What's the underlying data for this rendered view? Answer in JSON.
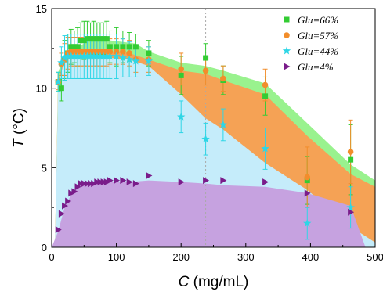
{
  "chart_data": {
    "type": "scatter",
    "xlabel": "C (mg/mL)",
    "ylabel": "T (°C)",
    "xlim": [
      0,
      500
    ],
    "ylim": [
      0,
      15
    ],
    "xticks": [
      0,
      100,
      200,
      300,
      400,
      500
    ],
    "yticks": [
      0,
      5,
      10,
      15
    ],
    "grid": false,
    "legend_position": "top-right",
    "reference_line": {
      "x": 238,
      "style": "dotted",
      "color": "#aaaaaa"
    },
    "series": [
      {
        "name": "Glu=66%",
        "marker": "square",
        "color": "#33cc33",
        "fill_color": "#99f28e",
        "x": [
          10,
          15,
          20,
          25,
          30,
          35,
          40,
          45,
          50,
          55,
          60,
          65,
          70,
          75,
          80,
          85,
          90,
          100,
          110,
          120,
          130,
          150,
          200,
          238,
          265,
          330,
          395,
          462
        ],
        "y": [
          10.4,
          10.0,
          11.8,
          12.2,
          12.6,
          12.6,
          12.6,
          13.0,
          13.0,
          13.1,
          13.1,
          13.1,
          13.1,
          13.1,
          13.1,
          13.1,
          12.6,
          12.6,
          12.6,
          12.6,
          12.6,
          12.2,
          10.8,
          11.9,
          10.5,
          9.5,
          4.2,
          5.5
        ],
        "err": [
          0.6,
          0.8,
          1.2,
          1.2,
          1.1,
          1.0,
          1.2,
          1.1,
          1.2,
          1.1,
          1.0,
          1.1,
          1.0,
          1.0,
          1.0,
          1.1,
          1.0,
          1.2,
          1.0,
          0.9,
          0.8,
          0.8,
          1.2,
          0.9,
          0.9,
          1.2,
          1.5,
          2.2
        ]
      },
      {
        "name": "Glu=57%",
        "marker": "circle",
        "color": "#f28d2b",
        "fill_color": "#f5a255",
        "x": [
          10,
          15,
          20,
          25,
          30,
          35,
          40,
          45,
          50,
          55,
          60,
          65,
          70,
          75,
          80,
          85,
          90,
          100,
          110,
          120,
          130,
          150,
          200,
          238,
          265,
          330,
          395,
          462
        ],
        "y": [
          10.4,
          11.5,
          11.8,
          12.2,
          12.3,
          12.3,
          12.3,
          12.3,
          12.3,
          12.3,
          12.3,
          12.3,
          12.3,
          12.3,
          12.3,
          12.3,
          12.3,
          12.3,
          12.3,
          12.2,
          11.8,
          11.8,
          11.2,
          11.1,
          10.6,
          10.2,
          4.4,
          6.0
        ],
        "err": [
          0.5,
          0.7,
          1.0,
          1.0,
          0.9,
          0.9,
          0.9,
          0.9,
          0.9,
          0.9,
          0.9,
          0.9,
          0.9,
          0.9,
          0.9,
          0.9,
          0.8,
          0.8,
          0.8,
          0.8,
          0.8,
          0.8,
          1.0,
          0.9,
          0.8,
          1.0,
          1.9,
          2.0
        ]
      },
      {
        "name": "Glu=44%",
        "marker": "star",
        "color": "#2ed6e6",
        "fill_color": "#c5ecfa",
        "x": [
          10,
          15,
          20,
          25,
          30,
          35,
          40,
          45,
          50,
          55,
          60,
          65,
          70,
          75,
          80,
          85,
          90,
          100,
          110,
          120,
          130,
          150,
          200,
          238,
          265,
          330,
          395,
          462
        ],
        "y": [
          10.4,
          11.6,
          11.9,
          12.0,
          12.0,
          12.0,
          12.0,
          12.0,
          12.0,
          12.0,
          12.0,
          12.0,
          12.0,
          12.0,
          12.0,
          12.0,
          12.0,
          12.0,
          11.9,
          11.8,
          11.7,
          11.7,
          8.2,
          6.8,
          7.7,
          6.2,
          1.5,
          2.5
        ],
        "err": [
          0.6,
          1.0,
          1.4,
          1.4,
          1.4,
          1.4,
          1.4,
          1.4,
          1.4,
          1.4,
          1.4,
          1.4,
          1.4,
          1.4,
          1.4,
          1.4,
          1.4,
          1.4,
          1.2,
          1.1,
          1.0,
          0.9,
          1.0,
          1.0,
          1.0,
          1.3,
          1.0,
          1.3
        ]
      },
      {
        "name": "Glu=4%",
        "marker": "triangle-right",
        "color": "#7a1c8a",
        "fill_color": "#c6a2e0",
        "x": [
          10,
          15,
          20,
          25,
          30,
          35,
          40,
          45,
          50,
          55,
          60,
          65,
          70,
          75,
          80,
          85,
          90,
          100,
          110,
          120,
          130,
          150,
          200,
          238,
          265,
          330,
          395,
          462
        ],
        "y": [
          1.1,
          2.1,
          2.6,
          2.9,
          3.4,
          3.5,
          3.8,
          4.0,
          4.0,
          4.0,
          4.0,
          4.0,
          4.1,
          4.1,
          4.1,
          4.1,
          4.2,
          4.2,
          4.2,
          4.1,
          4.0,
          4.5,
          4.1,
          4.2,
          4.2,
          4.1,
          3.4,
          2.2
        ]
      }
    ],
    "bands": [
      {
        "name": "Glu=66%",
        "fill_color": "#99f28e",
        "x": [
          5,
          10,
          20,
          30,
          40,
          60,
          90,
          130,
          150,
          200,
          238,
          265,
          330,
          395,
          462,
          500
        ],
        "y": [
          0,
          11.0,
          12.2,
          12.4,
          12.6,
          13.0,
          13.0,
          12.8,
          12.3,
          11.6,
          11.4,
          11.1,
          10.3,
          7.8,
          5.2,
          4.2
        ]
      },
      {
        "name": "Glu=57%",
        "fill_color": "#f5a255",
        "x": [
          5,
          10,
          20,
          30,
          40,
          60,
          90,
          120,
          150,
          200,
          238,
          265,
          330,
          395,
          462,
          500
        ],
        "y": [
          0,
          10.5,
          11.8,
          12.2,
          12.3,
          12.3,
          12.3,
          12.2,
          11.8,
          11.1,
          10.9,
          10.5,
          9.6,
          7.0,
          4.6,
          3.8
        ]
      },
      {
        "name": "Glu=44%",
        "fill_color": "#c5ecfa",
        "x": [
          5,
          10,
          20,
          30,
          40,
          60,
          90,
          120,
          150,
          200,
          238,
          265,
          330,
          395,
          462,
          500
        ],
        "y": [
          0,
          10.2,
          11.8,
          11.9,
          11.9,
          11.9,
          11.9,
          11.8,
          11.4,
          9.6,
          8.1,
          7.4,
          5.3,
          3.6,
          1.3,
          0.3
        ]
      },
      {
        "name": "Glu=4%",
        "fill_color": "#c6a2e0",
        "x": [
          0,
          10,
          20,
          30,
          40,
          60,
          90,
          120,
          150,
          200,
          238,
          265,
          330,
          395,
          462,
          485
        ],
        "y": [
          0,
          1.0,
          2.5,
          3.3,
          3.8,
          4.0,
          4.1,
          4.1,
          4.2,
          4.1,
          4.0,
          3.9,
          3.8,
          3.4,
          2.6,
          0
        ]
      }
    ]
  }
}
